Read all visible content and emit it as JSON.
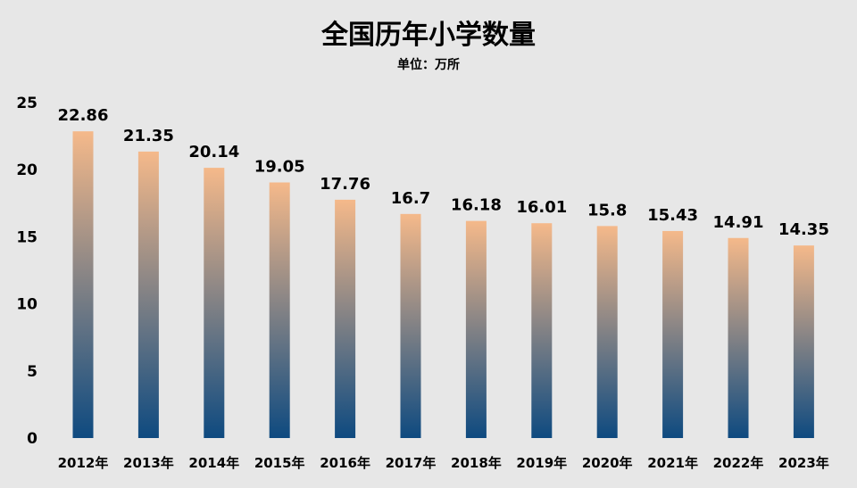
{
  "chart_data": {
    "type": "bar",
    "title": "全国历年小学数量",
    "subtitle": "单位：万所",
    "categories": [
      "2012年",
      "2013年",
      "2014年",
      "2015年",
      "2016年",
      "2017年",
      "2018年",
      "2019年",
      "2020年",
      "2021年",
      "2022年",
      "2023年"
    ],
    "values": [
      22.86,
      21.35,
      20.14,
      19.05,
      17.76,
      16.7,
      16.18,
      16.01,
      15.8,
      15.43,
      14.91,
      14.35
    ],
    "data_labels": [
      "22.86",
      "21.35",
      "20.14",
      "19.05",
      "17.76",
      "16.7",
      "16.18",
      "16.01",
      "15.8",
      "15.43",
      "14.91",
      "14.35"
    ],
    "ylim": [
      0,
      25
    ],
    "yticks": [
      0,
      5,
      10,
      15,
      20,
      25
    ],
    "ytick_labels": [
      "0",
      "5",
      "10",
      "15",
      "20",
      "25"
    ],
    "grid": false,
    "colors": {
      "background": "#e7e7e7",
      "bar_top": "#f5b98a",
      "bar_bottom": "#0e4a80"
    }
  }
}
